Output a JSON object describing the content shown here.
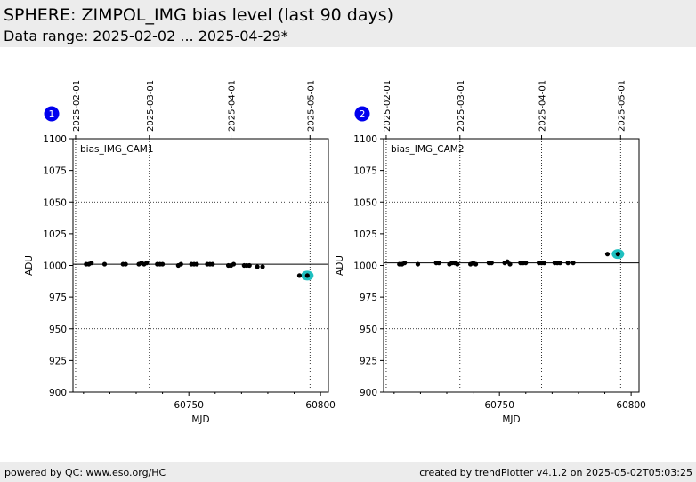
{
  "header": {
    "title": "SPHERE: ZIMPOL_IMG bias level (last 90 days)",
    "subtitle": "Data range: 2025-02-02 ... 2025-04-29*"
  },
  "footer": {
    "left": "powered by QC: www.eso.org/HC",
    "right": "created by trendPlotter v4.1.2 on 2025-05-02T05:03:25"
  },
  "colors": {
    "badge": "#0000ee",
    "highlight": "#1fbfbf",
    "points": "#000000",
    "header_bg": "#ececec"
  },
  "chart_data": [
    {
      "type": "scatter",
      "badge": "1",
      "label": "bias_IMG_CAM1",
      "xlabel": "MJD",
      "ylabel": "ADU",
      "xlim": [
        60706,
        60803
      ],
      "ylim": [
        900,
        1100
      ],
      "xticks": [
        60750,
        60800
      ],
      "yticks": [
        900,
        925,
        950,
        975,
        1000,
        1025,
        1050,
        1075,
        1100
      ],
      "reference_line": 1001,
      "date_ticks": [
        {
          "x": 60707,
          "label": "2025-02-01"
        },
        {
          "x": 60735,
          "label": "2025-03-01"
        },
        {
          "x": 60766,
          "label": "2025-04-01"
        },
        {
          "x": 60796,
          "label": "2025-05-01"
        }
      ],
      "x": [
        60711,
        60712,
        60713,
        60718,
        60725,
        60726,
        60731,
        60732,
        60733,
        60734,
        60738,
        60739,
        60740,
        60746,
        60747,
        60751,
        60752,
        60753,
        60757,
        60758,
        60759,
        60765,
        60766,
        60767,
        60771,
        60772,
        60773,
        60776,
        60778,
        60792,
        60795
      ],
      "y": [
        1001,
        1001,
        1002,
        1001,
        1001,
        1001,
        1001,
        1002,
        1001,
        1002,
        1001,
        1001,
        1001,
        1000,
        1001,
        1001,
        1001,
        1001,
        1001,
        1001,
        1001,
        1000,
        1000,
        1001,
        1000,
        1000,
        1000,
        999,
        999,
        992,
        992
      ],
      "highlight": {
        "x": 60795,
        "y": 992
      }
    },
    {
      "type": "scatter",
      "badge": "2",
      "label": "bias_IMG_CAM2",
      "xlabel": "MJD",
      "ylabel": "ADU",
      "xlim": [
        60706,
        60803
      ],
      "ylim": [
        900,
        1100
      ],
      "xticks": [
        60750,
        60800
      ],
      "yticks": [
        900,
        925,
        950,
        975,
        1000,
        1025,
        1050,
        1075,
        1100
      ],
      "reference_line": 1002,
      "date_ticks": [
        {
          "x": 60707,
          "label": "2025-02-01"
        },
        {
          "x": 60735,
          "label": "2025-03-01"
        },
        {
          "x": 60766,
          "label": "2025-04-01"
        },
        {
          "x": 60796,
          "label": "2025-05-01"
        }
      ],
      "x": [
        60712,
        60713,
        60714,
        60719,
        60726,
        60727,
        60731,
        60732,
        60733,
        60734,
        60739,
        60740,
        60741,
        60746,
        60747,
        60752,
        60753,
        60754,
        60758,
        60759,
        60760,
        60765,
        60766,
        60767,
        60771,
        60772,
        60773,
        60776,
        60778,
        60791,
        60795
      ],
      "y": [
        1001,
        1001,
        1002,
        1001,
        1002,
        1002,
        1001,
        1002,
        1002,
        1001,
        1001,
        1002,
        1001,
        1002,
        1002,
        1002,
        1003,
        1001,
        1002,
        1002,
        1002,
        1002,
        1002,
        1002,
        1002,
        1002,
        1002,
        1002,
        1002,
        1009,
        1009
      ],
      "highlight": {
        "x": 60795,
        "y": 1009
      }
    }
  ]
}
